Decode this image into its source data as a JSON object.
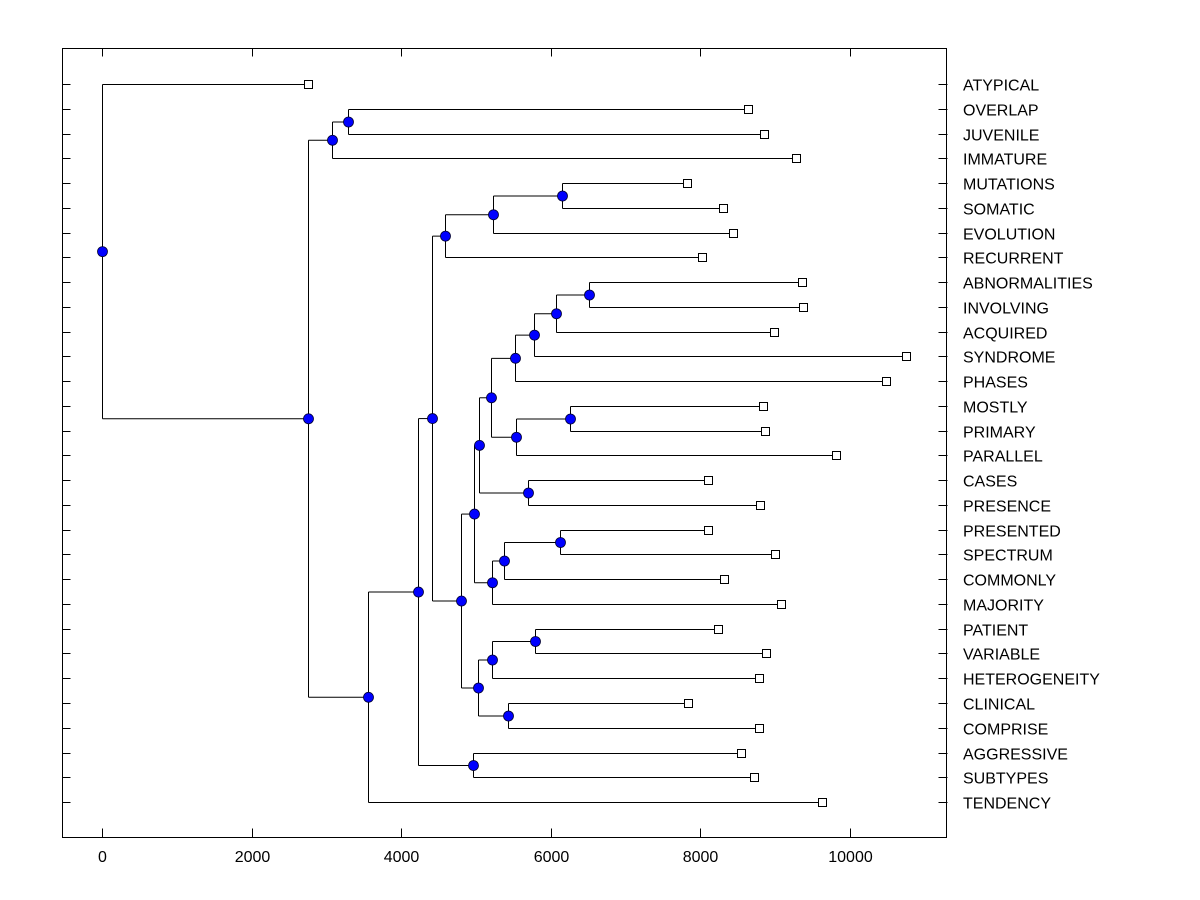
{
  "chart_data": {
    "type": "dendrogram",
    "title": "",
    "xlabel": "",
    "ylabel": "",
    "xlim": [
      -550,
      11300
    ],
    "xticks": [
      0,
      2000,
      4000,
      6000,
      8000,
      10000
    ],
    "xtick_labels": [
      "0",
      "2000",
      "4000",
      "6000",
      "8000",
      "10000"
    ],
    "grid": false,
    "orientation": "left-to-right",
    "node_color": "#0000FF",
    "leaf_marker": "open-square",
    "leaves": [
      {
        "label": "ATYPICAL",
        "value": 2756
      },
      {
        "label": "OVERLAP",
        "value": 8642
      },
      {
        "label": "JUVENILE",
        "value": 8856
      },
      {
        "label": "IMMATURE",
        "value": 9284
      },
      {
        "label": "MUTATIONS",
        "value": 7826
      },
      {
        "label": "SOMATIC",
        "value": 8308
      },
      {
        "label": "EVOLUTION",
        "value": 8441
      },
      {
        "label": "RECURRENT",
        "value": 8027
      },
      {
        "label": "ABNORMALITIES",
        "value": 9365
      },
      {
        "label": "INVOLVING",
        "value": 9378
      },
      {
        "label": "ACQUIRED",
        "value": 8990
      },
      {
        "label": "SYNDROME",
        "value": 10756
      },
      {
        "label": "PHASES",
        "value": 10488
      },
      {
        "label": "MOSTLY",
        "value": 8843
      },
      {
        "label": "PRIMARY",
        "value": 8870
      },
      {
        "label": "PARALLEL",
        "value": 9819
      },
      {
        "label": "CASES",
        "value": 8107
      },
      {
        "label": "PRESENCE",
        "value": 8803
      },
      {
        "label": "PRESENTED",
        "value": 8107
      },
      {
        "label": "SPECTRUM",
        "value": 9003
      },
      {
        "label": "COMMONLY",
        "value": 8321
      },
      {
        "label": "MAJORITY",
        "value": 9084
      },
      {
        "label": "PATIENT",
        "value": 8241
      },
      {
        "label": "VARIABLE",
        "value": 8883
      },
      {
        "label": "HETEROGENEITY",
        "value": 8789
      },
      {
        "label": "CLINICAL",
        "value": 7839
      },
      {
        "label": "COMPRISE",
        "value": 8789
      },
      {
        "label": "AGGRESSIVE",
        "value": 8548
      },
      {
        "label": "SUBTYPES",
        "value": 8722
      },
      {
        "label": "TENDENCY",
        "value": 9632
      }
    ],
    "merges": [
      {
        "id": "n1",
        "children": [
          "OVERLAP",
          "JUVENILE"
        ],
        "value": 3291
      },
      {
        "id": "n2",
        "children": [
          "n1",
          "IMMATURE"
        ],
        "value": 3077
      },
      {
        "id": "n3",
        "children": [
          "MUTATIONS",
          "SOMATIC"
        ],
        "value": 6154
      },
      {
        "id": "n4",
        "children": [
          "n3",
          "EVOLUTION"
        ],
        "value": 5231
      },
      {
        "id": "n5",
        "children": [
          "n4",
          "RECURRENT"
        ],
        "value": 4589
      },
      {
        "id": "n6",
        "children": [
          "ABNORMALITIES",
          "INVOLVING"
        ],
        "value": 6515
      },
      {
        "id": "n7",
        "children": [
          "n6",
          "ACQUIRED"
        ],
        "value": 6074
      },
      {
        "id": "n8",
        "children": [
          "n7",
          "SYNDROME"
        ],
        "value": 5779
      },
      {
        "id": "n9",
        "children": [
          "n8",
          "PHASES"
        ],
        "value": 5525
      },
      {
        "id": "n10",
        "children": [
          "MOSTLY",
          "PRIMARY"
        ],
        "value": 6261
      },
      {
        "id": "n11",
        "children": [
          "n10",
          "PARALLEL"
        ],
        "value": 5538
      },
      {
        "id": "n12",
        "children": [
          "n9",
          "n11"
        ],
        "value": 5204
      },
      {
        "id": "n13",
        "children": [
          "CASES",
          "PRESENCE"
        ],
        "value": 5699
      },
      {
        "id": "n14",
        "children": [
          "n12",
          "n13"
        ],
        "value": 5043
      },
      {
        "id": "n15",
        "children": [
          "PRESENTED",
          "SPECTRUM"
        ],
        "value": 6127
      },
      {
        "id": "n16",
        "children": [
          "n15",
          "COMMONLY"
        ],
        "value": 5378
      },
      {
        "id": "n17",
        "children": [
          "n16",
          "MAJORITY"
        ],
        "value": 5217
      },
      {
        "id": "n18",
        "children": [
          "n14",
          "n17"
        ],
        "value": 4977
      },
      {
        "id": "n19",
        "children": [
          "PATIENT",
          "VARIABLE"
        ],
        "value": 5793
      },
      {
        "id": "n20",
        "children": [
          "n19",
          "HETEROGENEITY"
        ],
        "value": 5217
      },
      {
        "id": "n21",
        "children": [
          "CLINICAL",
          "COMPRISE"
        ],
        "value": 5431
      },
      {
        "id": "n22",
        "children": [
          "n20",
          "n21"
        ],
        "value": 5030
      },
      {
        "id": "n23",
        "children": [
          "n18",
          "n22"
        ],
        "value": 4803
      },
      {
        "id": "n24",
        "children": [
          "n5",
          "n23"
        ],
        "value": 4415
      },
      {
        "id": "n25",
        "children": [
          "AGGRESSIVE",
          "SUBTYPES"
        ],
        "value": 4963
      },
      {
        "id": "n26",
        "children": [
          "n24",
          "n25"
        ],
        "value": 4227
      },
      {
        "id": "n27",
        "children": [
          "n26",
          "TENDENCY"
        ],
        "value": 3559
      },
      {
        "id": "n28",
        "children": [
          "n2",
          "n27"
        ],
        "value": 2756
      },
      {
        "id": "n29",
        "children": [
          "ATYPICAL",
          "n28"
        ],
        "value": 0
      }
    ]
  }
}
